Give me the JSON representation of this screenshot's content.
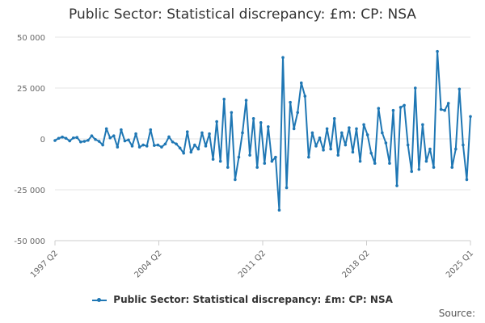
{
  "chart_data": {
    "type": "line",
    "title": "Public Sector: Statistical discrepancy: £m: CP: NSA",
    "xlabel": "",
    "ylabel": "",
    "ylim": [
      -50000,
      50000
    ],
    "y_ticks": [
      50000,
      25000,
      0,
      -25000,
      -50000
    ],
    "y_tick_labels": [
      "50 000",
      "25 000",
      "0",
      "-25 000",
      "-50 000"
    ],
    "x_tick_labels": [
      "1997 Q2",
      "2004 Q2",
      "2011 Q2",
      "2018 Q2",
      "2025 Q1"
    ],
    "grid": true,
    "legend_position": "bottom",
    "x_start": "1997 Q2",
    "x_end": "2025 Q1",
    "series": [
      {
        "name": "Public Sector: Statistical discrepancy: £m: CP: NSA",
        "color": "#1f77b4",
        "values": [
          -800,
          300,
          900,
          300,
          -1000,
          500,
          700,
          -1500,
          -1200,
          -700,
          1500,
          -300,
          -1200,
          -3000,
          5000,
          500,
          1500,
          -4000,
          4500,
          -1000,
          -500,
          -3500,
          2500,
          -4000,
          -3000,
          -3500,
          4500,
          -3200,
          -3000,
          -4000,
          -2500,
          1000,
          -1500,
          -2500,
          -4500,
          -7000,
          3500,
          -6500,
          -3000,
          -5000,
          3000,
          -3500,
          2500,
          -10000,
          8500,
          -11000,
          19500,
          -14000,
          13000,
          -20000,
          -9000,
          3000,
          19000,
          -8000,
          10000,
          -14000,
          8000,
          -12000,
          6000,
          -11000,
          -9000,
          -35000,
          40000,
          -24000,
          18000,
          5000,
          13000,
          27500,
          21000,
          -9000,
          3000,
          -3500,
          500,
          -5500,
          5000,
          -5000,
          10000,
          -8000,
          3000,
          -3000,
          5500,
          -6500,
          5000,
          -11000,
          7000,
          2000,
          -7000,
          -12000,
          15000,
          3000,
          -2000,
          -12000,
          14000,
          -23000,
          15500,
          16500,
          -3000,
          -16000,
          25000,
          -15000,
          7000,
          -11000,
          -5000,
          -14000,
          43000,
          14500,
          14000,
          17500,
          -14000,
          -5000,
          24500,
          -3000,
          -20000,
          11000
        ]
      }
    ]
  },
  "legend": {
    "label": "Public Sector: Statistical discrepancy: £m: CP: NSA"
  },
  "source_label": "Source:"
}
